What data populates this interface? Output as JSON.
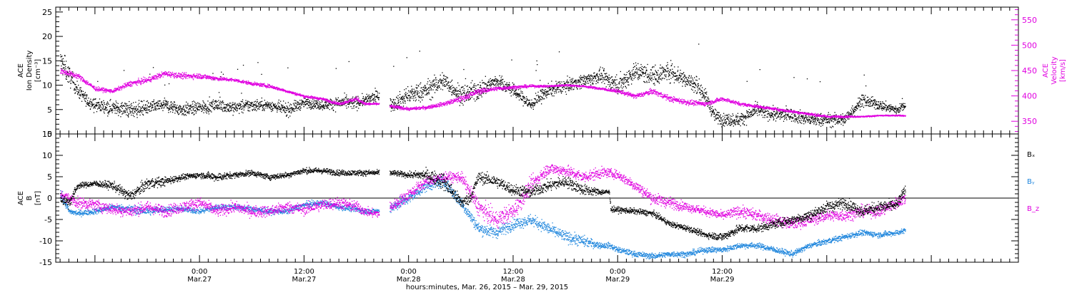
{
  "chart_data": [
    {
      "type": "scatter",
      "panel": "ion-density-and-velocity",
      "ylabel_left": [
        "ACE",
        "Ion Density",
        "[cm⁻³]"
      ],
      "ylabel_right": [
        "ACE",
        "Velocity",
        "[km/s]"
      ],
      "ylim_left": [
        0,
        26
      ],
      "ylim_right": [
        325,
        575
      ],
      "yticks_left": [
        0,
        5,
        10,
        15,
        20,
        25
      ],
      "yticks_right": [
        350,
        400,
        450,
        500,
        550
      ],
      "grid": false,
      "colors": {
        "density": "#000000",
        "velocity": "#e000e0"
      },
      "series": [
        {
          "name": "Ion Density",
          "axis": "left",
          "color": "#000000",
          "x": [
            -16,
            -15,
            -14,
            -13,
            -12,
            -10,
            -8,
            -6,
            -4,
            -2,
            0,
            2,
            4,
            6,
            8,
            10,
            12,
            14,
            16,
            18,
            19,
            20,
            20.5,
            22,
            24,
            26,
            28,
            30,
            32,
            34,
            36,
            38,
            40,
            42,
            44,
            46,
            48,
            50,
            52,
            54,
            56,
            57,
            58,
            59,
            60,
            62,
            64,
            66,
            68,
            70,
            72,
            74,
            76,
            78,
            80,
            81
          ],
          "y": [
            15,
            12,
            9,
            7,
            6,
            5.5,
            5,
            5.5,
            6,
            5,
            5.5,
            6,
            5.5,
            6,
            6,
            5,
            6.5,
            6,
            6.5,
            6.5,
            7,
            7.5,
            8,
            6,
            8,
            9,
            11,
            8,
            9,
            11,
            9,
            6,
            9,
            10,
            11,
            12,
            10,
            13,
            12,
            13,
            11,
            10,
            8,
            4,
            3,
            3,
            5,
            4,
            4,
            3,
            3,
            3,
            7,
            6,
            5,
            6
          ],
          "scatter": [
            4,
            3,
            2,
            2,
            2,
            2,
            2.5,
            2,
            2,
            2,
            2,
            2,
            2,
            2,
            1.5,
            2,
            1.5,
            1.5,
            2,
            2,
            1.5,
            2,
            2,
            2,
            3,
            3,
            3,
            3,
            3,
            2,
            2,
            2,
            2,
            2,
            2,
            2,
            3,
            3,
            3,
            3,
            3,
            3,
            2,
            2,
            2,
            2,
            2,
            2,
            2,
            2,
            2,
            2,
            2,
            1.5,
            1.5,
            1
          ]
        },
        {
          "name": "Velocity",
          "axis": "right",
          "color": "#e000e0",
          "x": [
            -16,
            -14,
            -12,
            -10,
            -8,
            -6,
            -4,
            -2,
            0,
            2,
            4,
            6,
            8,
            10,
            12,
            14,
            16,
            18,
            19,
            20,
            20.5,
            22,
            24,
            26,
            28,
            30,
            32,
            34,
            36,
            38,
            40,
            42,
            44,
            46,
            48,
            50,
            52,
            54,
            56,
            58,
            60,
            62,
            64,
            66,
            68,
            70,
            72,
            74,
            76,
            78,
            80,
            81
          ],
          "y": [
            450,
            440,
            415,
            410,
            425,
            432,
            445,
            440,
            440,
            435,
            432,
            425,
            420,
            410,
            400,
            395,
            385,
            395,
            385,
            385,
            385,
            380,
            375,
            378,
            385,
            395,
            410,
            415,
            418,
            420,
            420,
            422,
            420,
            415,
            410,
            400,
            410,
            395,
            388,
            385,
            395,
            385,
            380,
            375,
            370,
            365,
            360,
            360,
            360,
            362,
            362,
            362
          ],
          "scatter": [
            8,
            8,
            6,
            5,
            8,
            8,
            8,
            8,
            8,
            6,
            5,
            5,
            5,
            4,
            4,
            4,
            4,
            6,
            4,
            3,
            3,
            5,
            4,
            5,
            6,
            8,
            8,
            6,
            5,
            4,
            3,
            3,
            3,
            4,
            5,
            7,
            8,
            8,
            8,
            6,
            6,
            5,
            4,
            4,
            4,
            4,
            4,
            3,
            2,
            2,
            2,
            2
          ]
        }
      ]
    },
    {
      "type": "scatter",
      "panel": "magnetic-field",
      "ylabel_left": [
        "ACE",
        "B",
        "[nT]"
      ],
      "ylim": [
        -15,
        15
      ],
      "yticks": [
        -15,
        -10,
        -5,
        0,
        5,
        10,
        15
      ],
      "zero_line": true,
      "grid": false,
      "legend_position": "right",
      "series": [
        {
          "name": "Bₓ",
          "color": "#000000",
          "x": [
            -16,
            -15,
            -14,
            -12,
            -10,
            -8,
            -6,
            -4,
            -2,
            0,
            2,
            4,
            6,
            8,
            10,
            12,
            14,
            16,
            18,
            19,
            20,
            20.5,
            22,
            24,
            26,
            28,
            30,
            31,
            32,
            34,
            36,
            38,
            40,
            42,
            44,
            46,
            47,
            47.2,
            50,
            52,
            54,
            56,
            58,
            60,
            62,
            64,
            66,
            68,
            70,
            72,
            74,
            76,
            78,
            80,
            81
          ],
          "y": [
            0,
            -1,
            3,
            3.5,
            3,
            0.5,
            3.5,
            4,
            5,
            5.5,
            5,
            5.5,
            6,
            5,
            5.5,
            6.5,
            6.5,
            6,
            6,
            6,
            6,
            6,
            6,
            5.5,
            5.5,
            4,
            -1,
            0,
            5,
            4,
            2,
            1.5,
            3,
            4,
            2,
            1.5,
            1.5,
            -2.5,
            -3,
            -3.5,
            -6,
            -7,
            -8.5,
            -9,
            -7,
            -7,
            -6,
            -5,
            -4,
            -2,
            -1,
            -3,
            -2,
            -1.5,
            2
          ],
          "scatter": [
            2,
            2,
            1,
            1,
            1.5,
            2,
            2,
            1.5,
            1,
            1,
            1.5,
            1,
            1,
            1,
            1,
            1,
            1,
            1,
            1,
            1,
            1,
            1,
            1,
            1,
            2,
            3,
            2,
            2,
            2,
            2,
            2,
            2,
            2,
            2,
            2,
            1,
            1,
            1,
            1,
            1,
            1,
            1,
            1,
            1.5,
            1.5,
            1.5,
            1.5,
            1.5,
            2,
            2,
            2,
            2,
            2,
            2,
            2
          ]
        },
        {
          "name": "Bᵧ",
          "color": "#1f86dd",
          "x": [
            -16,
            -15,
            -14,
            -12,
            -10,
            -8,
            -6,
            -4,
            -2,
            0,
            2,
            4,
            6,
            8,
            10,
            12,
            14,
            16,
            18,
            19,
            20,
            20.5,
            22,
            24,
            26,
            28,
            30,
            32,
            34,
            36,
            38,
            40,
            42,
            44,
            46,
            47,
            48,
            50,
            52,
            54,
            56,
            58,
            60,
            62,
            64,
            66,
            68,
            70,
            72,
            74,
            76,
            78,
            80,
            81
          ],
          "y": [
            1,
            -3,
            -3.5,
            -3,
            -2,
            -2.5,
            -3,
            -2.5,
            -2.5,
            -3,
            -2,
            -2,
            -2.5,
            -3,
            -3,
            -1.5,
            -1,
            -2,
            -2.5,
            -3,
            -3,
            -3,
            -2,
            0,
            3,
            4,
            -1,
            -7,
            -8,
            -6,
            -5,
            -7,
            -9,
            -10,
            -11,
            -11,
            -12,
            -13,
            -13.5,
            -13,
            -13,
            -12,
            -12,
            -11,
            -11,
            -12,
            -13,
            -11,
            -10,
            -9,
            -8,
            -8.5,
            -8,
            -7.5
          ],
          "scatter": [
            2,
            1,
            1,
            1,
            1,
            1.5,
            1.5,
            1,
            1,
            1,
            1,
            1,
            1,
            1,
            1,
            1,
            1,
            1,
            1,
            1,
            1,
            1,
            2,
            2,
            2,
            2,
            2,
            2,
            2,
            2,
            2,
            2,
            2,
            2,
            1,
            1,
            1,
            1,
            1,
            1,
            1,
            1,
            1,
            1,
            1,
            1,
            1,
            1,
            1,
            1,
            1,
            1,
            1,
            1
          ]
        },
        {
          "name": "B_z",
          "color": "#e000e0",
          "x": [
            -16,
            -15,
            -14,
            -12,
            -10,
            -8,
            -6,
            -4,
            -2,
            0,
            2,
            4,
            6,
            8,
            10,
            12,
            14,
            16,
            18,
            19,
            20,
            20.5,
            22,
            24,
            26,
            28,
            30,
            32,
            34,
            36,
            38,
            40,
            42,
            44,
            46,
            47,
            48,
            50,
            52,
            54,
            56,
            58,
            60,
            62,
            64,
            66,
            68,
            70,
            72,
            74,
            76,
            78,
            80,
            81
          ],
          "y": [
            1,
            0,
            -1,
            -1.5,
            -2.5,
            -3,
            -2,
            -3,
            -2,
            -1,
            -3,
            -2,
            -3,
            -3,
            -2,
            -2.5,
            -1.5,
            -1,
            -2,
            -3,
            -3.5,
            -3.5,
            -2,
            1,
            4,
            5,
            5,
            -2,
            -5,
            -3,
            3,
            7,
            6.5,
            5,
            6,
            6,
            5.5,
            3,
            0,
            -1,
            -2,
            -3,
            -4,
            -3,
            -4,
            -5,
            -6,
            -5,
            -4,
            -4,
            -3,
            -3,
            -1,
            0
          ],
          "scatter": [
            1,
            2,
            2,
            2,
            2,
            2,
            2,
            2,
            2,
            2,
            2,
            2,
            2,
            2,
            2,
            2,
            2,
            2,
            2,
            1.5,
            1.5,
            1.5,
            2,
            2,
            2,
            1.5,
            2,
            3,
            3,
            3,
            3,
            2,
            2,
            2,
            2,
            1.5,
            1.5,
            2,
            2,
            2,
            1.5,
            1.5,
            1.5,
            2,
            2,
            2,
            2,
            2,
            2,
            2,
            2,
            2,
            2,
            2
          ]
        }
      ]
    }
  ],
  "xaxis": {
    "xlim_hours": [
      -16.5,
      94
    ],
    "ticks": [
      {
        "hour": 0,
        "time": "0:00",
        "date": "Mar.27"
      },
      {
        "hour": 12,
        "time": "12:00",
        "date": "Mar.27"
      },
      {
        "hour": 24,
        "time": "0:00",
        "date": "Mar.28"
      },
      {
        "hour": 36,
        "time": "12:00",
        "date": "Mar.28"
      },
      {
        "hour": 48,
        "time": "0:00",
        "date": "Mar.29"
      },
      {
        "hour": 60,
        "time": "12:00",
        "date": "Mar.29"
      }
    ],
    "xlabel": "hours:minutes, Mar. 26, 2015 – Mar. 29, 2015"
  }
}
